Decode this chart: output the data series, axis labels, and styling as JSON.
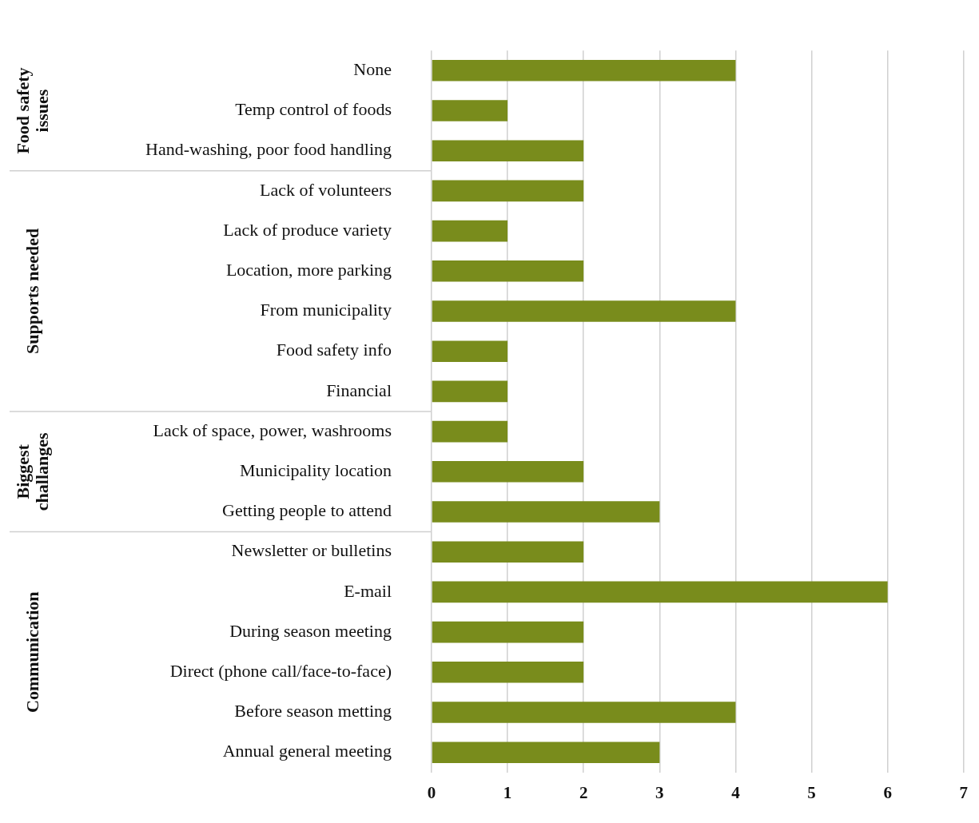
{
  "chart_data": {
    "type": "bar",
    "orientation": "horizontal",
    "categories": [
      "None",
      "Temp control of foods",
      "Hand-washing, poor food handling",
      "Lack of volunteers",
      "Lack of produce variety",
      "Location, more parking",
      "From municipality",
      "Food safety info",
      "Financial",
      "Lack of space, power, washrooms",
      "Municipality location",
      "Getting people to attend",
      "Newsletter or bulletins",
      "E-mail",
      "During season meeting",
      "Direct (phone call/face-to-face)",
      "Before season metting",
      "Annual general meeting"
    ],
    "values": [
      4,
      1,
      2,
      2,
      1,
      2,
      4,
      1,
      1,
      1,
      2,
      3,
      2,
      6,
      2,
      2,
      4,
      3
    ],
    "color": "#798c1c",
    "xlim": [
      0,
      7
    ],
    "xticks": [
      0,
      1,
      2,
      3,
      4,
      5,
      6,
      7
    ],
    "grid": "x",
    "legend": false,
    "annotations": [
      "Food safety issues",
      "Supports needed",
      "Biggest challanges",
      "Communication"
    ]
  }
}
